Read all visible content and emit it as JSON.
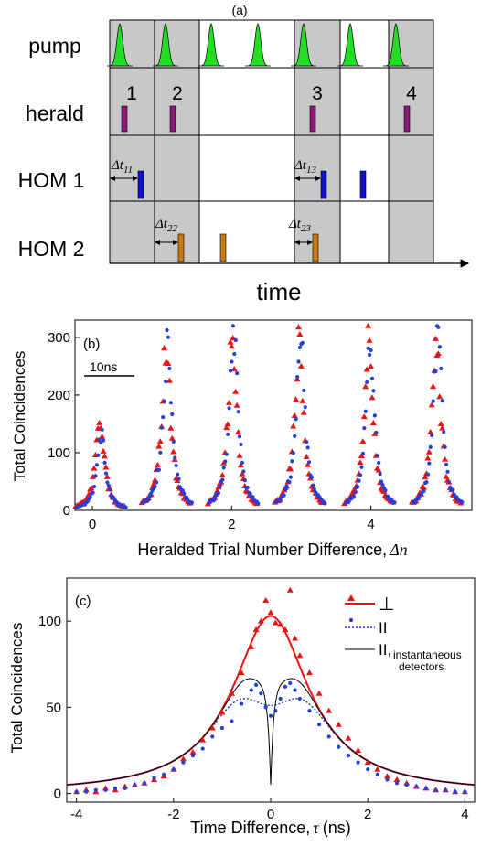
{
  "colors": {
    "pump": "#22dd22",
    "herald": "#8b1a7a",
    "hom1": "#1010cc",
    "hom2": "#c87a10",
    "shade": "#c8c8c8",
    "perp": "#ee1111",
    "par": "#1f3fe0",
    "inst": "#000000"
  },
  "panel_a": {
    "label": "(a)",
    "rows": [
      "pump",
      "herald",
      "HOM 1",
      "HOM 2"
    ],
    "trial_numbers": [
      "1",
      "2",
      "3",
      "4"
    ],
    "time_label": "time",
    "delays": {
      "t11": {
        "base": "Δt",
        "sub": "11"
      },
      "t13": {
        "base": "Δt",
        "sub": "13"
      },
      "t22": {
        "base": "Δt",
        "sub": "22"
      },
      "t23": {
        "base": "Δt",
        "sub": "23"
      }
    }
  },
  "chart_data": [
    {
      "type": "scatter",
      "panel": "(b)",
      "xlabel_text": "Heralded Trial Number Difference,",
      "xlabel_symbol": "Δn",
      "ylabel": "Total Coincidences",
      "xlim": [
        -0.25,
        5.45
      ],
      "ylim": [
        0,
        330
      ],
      "xticks": [
        0,
        2,
        4
      ],
      "yticks": [
        0,
        100,
        200,
        300
      ],
      "scale_bar": "10ns",
      "peak_centers": [
        0.12,
        1.07,
        2.02,
        2.98,
        3.98,
        4.95
      ],
      "series": [
        {
          "marker": "triangle",
          "peak_heights": [
            158,
            298,
            305,
            305,
            298,
            305
          ]
        },
        {
          "marker": "dot",
          "peak_heights": [
            130,
            300,
            310,
            310,
            300,
            315
          ]
        }
      ]
    },
    {
      "type": "line",
      "panel": "(c)",
      "xlabel_text": "Time Difference,",
      "xlabel_symbol": "τ",
      "xlabel_unit": "(ns)",
      "ylabel": "Total Coincidences",
      "xlim": [
        -4.2,
        4.2
      ],
      "ylim": [
        -5,
        125
      ],
      "xticks": [
        -4,
        -2,
        0,
        2,
        4
      ],
      "yticks": [
        0,
        50,
        100
      ],
      "legend": {
        "perp": "⊥",
        "par": "II",
        "inst_main": "II,",
        "inst_sub1": "instantaneous",
        "inst_sub2": "detectors"
      },
      "perp_points": [
        [
          -4,
          1
        ],
        [
          -3.8,
          2
        ],
        [
          -3.6,
          1
        ],
        [
          -3.4,
          3
        ],
        [
          -3.2,
          2
        ],
        [
          -3,
          4
        ],
        [
          -2.8,
          5
        ],
        [
          -2.6,
          6
        ],
        [
          -2.4,
          8
        ],
        [
          -2.2,
          10
        ],
        [
          -2,
          14
        ],
        [
          -1.8,
          20
        ],
        [
          -1.6,
          24
        ],
        [
          -1.4,
          31
        ],
        [
          -1.2,
          38
        ],
        [
          -1,
          47
        ],
        [
          -0.8,
          58
        ],
        [
          -0.6,
          70
        ],
        [
          -0.4,
          85
        ],
        [
          -0.3,
          95
        ],
        [
          -0.2,
          100
        ],
        [
          -0.1,
          112
        ],
        [
          0,
          105
        ],
        [
          0.1,
          99
        ],
        [
          0.2,
          98
        ],
        [
          0.3,
          95
        ],
        [
          0.4,
          118
        ],
        [
          0.5,
          90
        ],
        [
          0.6,
          80
        ],
        [
          0.8,
          70
        ],
        [
          1,
          58
        ],
        [
          1.2,
          48
        ],
        [
          1.4,
          40
        ],
        [
          1.6,
          32
        ],
        [
          1.8,
          25
        ],
        [
          2,
          18
        ],
        [
          2.2,
          14
        ],
        [
          2.4,
          10
        ],
        [
          2.6,
          8
        ],
        [
          2.8,
          6
        ],
        [
          3,
          4
        ],
        [
          3.2,
          3
        ],
        [
          3.4,
          2
        ],
        [
          3.6,
          2
        ],
        [
          3.8,
          1
        ],
        [
          4,
          1
        ]
      ],
      "par_points": [
        [
          -4,
          1
        ],
        [
          -3.8,
          1
        ],
        [
          -3.6,
          2
        ],
        [
          -3.4,
          2
        ],
        [
          -3.2,
          3
        ],
        [
          -3,
          3
        ],
        [
          -2.8,
          5
        ],
        [
          -2.6,
          6
        ],
        [
          -2.4,
          9
        ],
        [
          -2.2,
          11
        ],
        [
          -2,
          14
        ],
        [
          -1.8,
          18
        ],
        [
          -1.6,
          22
        ],
        [
          -1.4,
          26
        ],
        [
          -1.2,
          33
        ],
        [
          -1,
          38
        ],
        [
          -0.8,
          42
        ],
        [
          -0.6,
          52
        ],
        [
          -0.4,
          60
        ],
        [
          -0.3,
          63
        ],
        [
          -0.2,
          58
        ],
        [
          -0.1,
          50
        ],
        [
          0,
          45
        ],
        [
          0.1,
          48
        ],
        [
          0.2,
          55
        ],
        [
          0.3,
          62
        ],
        [
          0.4,
          64
        ],
        [
          0.5,
          60
        ],
        [
          0.6,
          55
        ],
        [
          0.8,
          48
        ],
        [
          1,
          40
        ],
        [
          1.2,
          33
        ],
        [
          1.4,
          27
        ],
        [
          1.6,
          22
        ],
        [
          1.8,
          18
        ],
        [
          2,
          14
        ],
        [
          2.2,
          11
        ],
        [
          2.4,
          8
        ],
        [
          2.6,
          6
        ],
        [
          2.8,
          5
        ],
        [
          3,
          4
        ],
        [
          3.2,
          3
        ],
        [
          3.4,
          2
        ],
        [
          3.6,
          2
        ],
        [
          3.8,
          1
        ],
        [
          4,
          1
        ]
      ]
    }
  ]
}
